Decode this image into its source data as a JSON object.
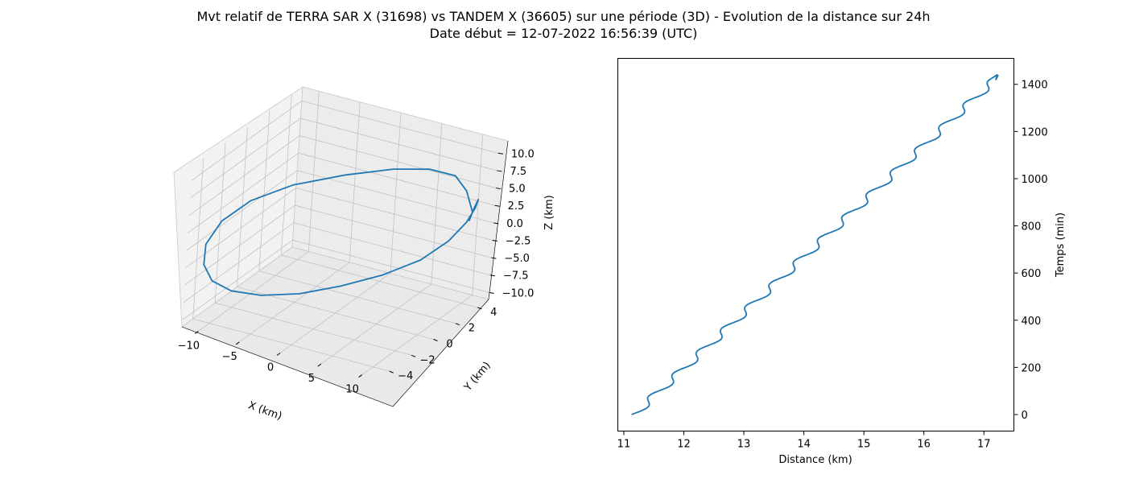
{
  "figure": {
    "title_line1": "Mvt relatif de TERRA SAR X (31698) vs TANDEM X (36605) sur une période (3D) - Evolution de la distance sur 24h",
    "title_line2": "Date début = 12-07-2022 16:56:39 (UTC)",
    "line_color": "#1f77b4"
  },
  "chart_data": [
    {
      "type": "line",
      "projection": "3d",
      "series": [
        {
          "x": [
            10.8,
            10.4,
            9.8,
            8.2,
            5.6,
            1.8,
            -2.8,
            -6.6,
            -9.3,
            -10.9,
            -11.5,
            -11.4,
            -10.4,
            -8.4,
            -5.6,
            -2.4,
            1.3,
            4.9,
            7.6,
            9.5,
            10.6,
            11.1,
            11.0,
            10.8
          ],
          "y": [
            3.9,
            3.5,
            2.8,
            1.6,
            0.2,
            -1.3,
            -2.6,
            -3.5,
            -4.0,
            -4.1,
            -3.7,
            -2.9,
            -1.8,
            -0.5,
            0.9,
            2.2,
            3.2,
            3.9,
            4.3,
            4.4,
            4.3,
            4.1,
            3.8,
            3.6
          ],
          "z": [
            2.3,
            5.8,
            8.6,
            10.4,
            11.2,
            10.9,
            9.5,
            7.1,
            3.9,
            0.2,
            -3.4,
            -6.6,
            -9.0,
            -10.5,
            -11.0,
            -10.4,
            -8.8,
            -6.3,
            -3.2,
            0.0,
            2.6,
            4.1,
            3.0,
            1.5
          ]
        }
      ],
      "xlabel": "X (km)",
      "ylabel": "Y (km)",
      "zlabel": "Z (km)",
      "xlim": [
        -12,
        12
      ],
      "ylim": [
        -5,
        5
      ],
      "zlim": [
        -11,
        12
      ],
      "xticks": [
        "−10",
        "−5",
        "0",
        "5",
        "10"
      ],
      "yticks": [
        "−4",
        "−2",
        "0",
        "2",
        "4"
      ],
      "zticks": [
        "−10.0",
        "−7.5",
        "−5.0",
        "−2.5",
        "0.0",
        "2.5",
        "5.0",
        "7.5",
        "10.0"
      ],
      "grid": true
    },
    {
      "type": "line",
      "xlabel": "Distance (km)",
      "ylabel": "Temps (min)",
      "y_axis_position": "right",
      "xlim": [
        10.9,
        17.5
      ],
      "ylim": [
        -70,
        1510
      ],
      "xticks": [
        "11",
        "12",
        "13",
        "14",
        "15",
        "16",
        "17"
      ],
      "yticks": [
        "0",
        "200",
        "400",
        "600",
        "800",
        "1000",
        "1200",
        "1400"
      ],
      "series": [
        {
          "x": [
            11.13,
            11.22,
            11.35,
            11.5,
            11.5,
            11.57,
            11.7,
            11.86,
            11.9,
            11.95,
            12.09,
            12.24,
            12.3,
            12.36,
            12.48,
            12.64,
            12.66,
            12.74,
            12.88,
            13.01,
            13.04,
            13.13,
            13.27,
            13.43,
            13.43,
            13.52,
            13.66,
            13.82,
            13.83,
            13.9,
            14.04,
            14.2,
            14.21,
            14.28,
            14.43,
            14.58,
            14.6,
            14.67,
            14.82,
            14.98,
            14.98,
            15.07,
            15.21,
            15.37,
            15.38,
            15.46,
            15.6,
            15.76,
            15.76,
            15.85,
            15.98,
            16.14,
            16.15,
            16.23,
            16.38,
            16.53,
            16.56,
            16.61,
            16.77,
            16.9,
            16.94,
            17.0,
            17.15,
            17.22,
            17.2,
            17.24
          ],
          "y": [
            0,
            30,
            60,
            75,
            100,
            130,
            160,
            175,
            200,
            230,
            260,
            275,
            300,
            330,
            360,
            375,
            400,
            430,
            460,
            475,
            500,
            530,
            560,
            575,
            600,
            630,
            660,
            675,
            700,
            730,
            760,
            775,
            800,
            830,
            860,
            875,
            900,
            930,
            960,
            975,
            1000,
            1030,
            1060,
            1075,
            1100,
            1130,
            1160,
            1175,
            1200,
            1230,
            1260,
            1275,
            1300,
            1330,
            1360,
            1375,
            1400,
            1420,
            1440,
            1440,
            1440,
            1440,
            1440,
            1440,
            1420,
            1440
          ]
        }
      ],
      "grid": false
    }
  ]
}
